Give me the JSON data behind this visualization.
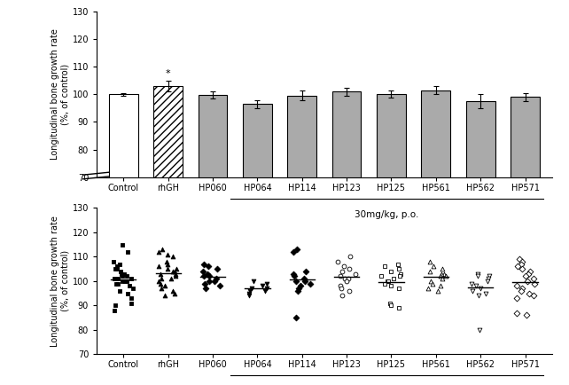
{
  "categories": [
    "Control",
    "rhGH",
    "HP060",
    "HP064",
    "HP114",
    "HP123",
    "HP125",
    "HP561",
    "HP562",
    "HP571"
  ],
  "bar_values": [
    100.0,
    103.0,
    99.8,
    96.5,
    99.5,
    101.0,
    100.0,
    101.5,
    97.5,
    99.0
  ],
  "bar_errors": [
    0.5,
    1.8,
    1.2,
    1.5,
    1.8,
    1.5,
    1.3,
    1.5,
    2.5,
    1.5
  ],
  "bar_colors": [
    "white",
    "hatch",
    "gray",
    "gray",
    "gray",
    "gray",
    "gray",
    "gray",
    "gray",
    "gray"
  ],
  "bar_gray": "#aaaaaa",
  "bar_edge": "#000000",
  "ylim": [
    70,
    130
  ],
  "yticks": [
    70,
    80,
    90,
    100,
    110,
    120,
    130
  ],
  "ylabel": "Longitudinal bone growth rate\n(%, of control)",
  "xlabel_annotation": "30mg/kg, p.o.",
  "annotation_star": "*",
  "scatter_data": {
    "Control": [
      115,
      112,
      108,
      107,
      106,
      105,
      105,
      104,
      103,
      103,
      102,
      102,
      101,
      101,
      101,
      100,
      100,
      100,
      99,
      99,
      98,
      97,
      96,
      95,
      93,
      91,
      90,
      88
    ],
    "rhGH": [
      113,
      112,
      111,
      110,
      108,
      107,
      106,
      105,
      105,
      104,
      104,
      103,
      103,
      102,
      101,
      101,
      100,
      99,
      98,
      97,
      96,
      95,
      94
    ],
    "HP060": [
      107,
      106,
      105,
      104,
      103,
      102,
      102,
      101,
      100,
      100,
      99,
      98,
      97
    ],
    "HP064": [
      100,
      99,
      98,
      97,
      97,
      96,
      96,
      95,
      94
    ],
    "HP114": [
      113,
      112,
      104,
      103,
      102,
      101,
      100,
      100,
      99,
      98,
      97,
      96,
      85
    ],
    "HP123": [
      110,
      108,
      106,
      105,
      104,
      103,
      102,
      101,
      101,
      100,
      98,
      97,
      96,
      94
    ],
    "HP125": [
      107,
      106,
      105,
      104,
      103,
      102,
      102,
      101,
      100,
      100,
      99,
      98,
      97,
      91,
      90,
      89
    ],
    "HP561": [
      108,
      106,
      105,
      104,
      103,
      103,
      102,
      102,
      101,
      100,
      99,
      98,
      97,
      96
    ],
    "HP562": [
      103,
      102,
      102,
      101,
      100,
      99,
      98,
      97,
      96,
      95,
      94,
      80
    ],
    "HP571": [
      109,
      108,
      107,
      106,
      105,
      104,
      103,
      102,
      101,
      100,
      99,
      98,
      97,
      96,
      95,
      94,
      93,
      87,
      86
    ]
  },
  "scatter_markers": [
    "s",
    "^",
    "D",
    "v",
    "D",
    "o",
    "s",
    "^",
    "v",
    "D"
  ],
  "scatter_filled": [
    true,
    true,
    true,
    true,
    true,
    false,
    false,
    false,
    false,
    false
  ]
}
